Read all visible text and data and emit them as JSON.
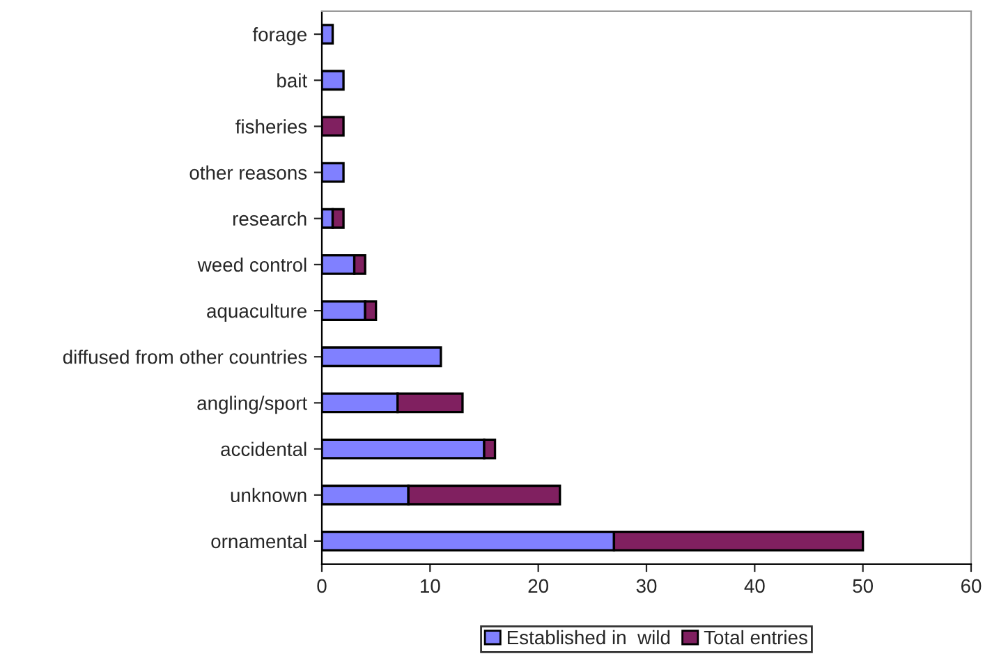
{
  "chart_data": {
    "type": "bar",
    "orientation": "horizontal",
    "stacked": true,
    "categories": [
      "forage",
      "bait",
      "fisheries",
      "other reasons",
      "research",
      "weed control",
      "aquaculture",
      "diffused from other countries",
      "angling/sport",
      "accidental",
      "unknown",
      "ornamental"
    ],
    "series": [
      {
        "name": "Established in  wild",
        "color": "#8080ff",
        "values": [
          1,
          2,
          0,
          2,
          1,
          3,
          4,
          11,
          7,
          15,
          8,
          27
        ]
      },
      {
        "name": "Total entries",
        "color": "#802060",
        "values": [
          0,
          0,
          2,
          0,
          1,
          1,
          1,
          0,
          6,
          1,
          14,
          23
        ]
      }
    ],
    "xlim": [
      0,
      60
    ],
    "xticks": [
      0,
      10,
      20,
      30,
      40,
      50,
      60
    ],
    "grid": false,
    "legend": "bottom"
  }
}
